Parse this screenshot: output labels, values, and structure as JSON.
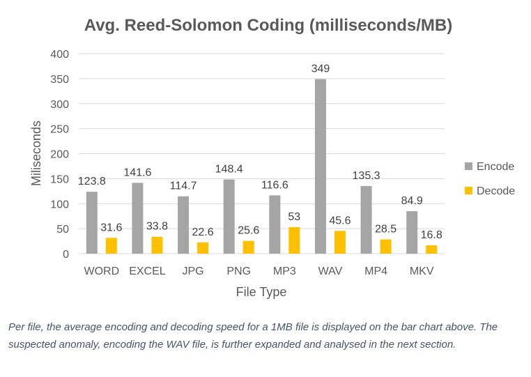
{
  "chart_data": {
    "type": "bar",
    "title": "Avg. Reed-Solomon Coding (milliseconds/MB)",
    "xlabel": "File Type",
    "ylabel": "Miliseconds",
    "categories": [
      "WORD",
      "EXCEL",
      "JPG",
      "PNG",
      "MP3",
      "WAV",
      "MP4",
      "MKV"
    ],
    "series": [
      {
        "name": "Encode",
        "color": "#a5a5a5",
        "values": [
          123.8,
          141.6,
          114.7,
          148.4,
          116.6,
          349,
          135.3,
          84.9
        ],
        "labels": [
          "123.8",
          "141.6",
          "114.7",
          "148.4",
          "116.6",
          "349",
          "135.3",
          "84.9"
        ]
      },
      {
        "name": "Decode",
        "color": "#ffc000",
        "values": [
          31.6,
          33.8,
          22.6,
          25.6,
          53,
          45.6,
          28.5,
          16.8
        ],
        "labels": [
          "31.6",
          "33.8",
          "22.6",
          "25.6",
          "53",
          "45.6",
          "28.5",
          "16.8"
        ]
      }
    ],
    "ylim": [
      0,
      400
    ],
    "yticks": [
      "0",
      "50",
      "100",
      "150",
      "200",
      "250",
      "300",
      "350",
      "400"
    ],
    "grid": true,
    "legend_position": "right"
  },
  "caption": "Per file, the average encoding and decoding speed for a 1MB file is displayed on the bar chart above. The suspected anomaly, encoding the WAV file, is further expanded and analysed in the next section."
}
